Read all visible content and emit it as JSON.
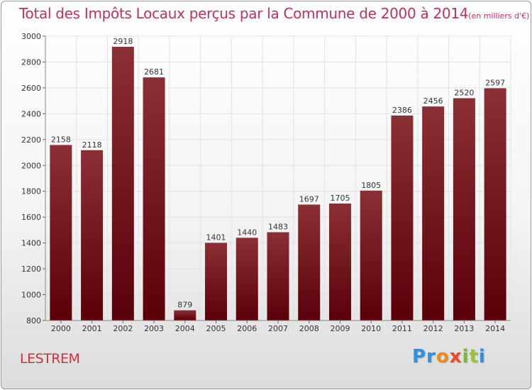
{
  "title": {
    "main": "Total des Impôts Locaux perçus par la Commune de 2000 à 2014",
    "unit": "(en milliers d'€)"
  },
  "commune": "LESTREM",
  "logo": {
    "text": "Proxiti",
    "letters": [
      "Pr",
      "o",
      "x",
      "i",
      "t",
      "i"
    ],
    "colors": [
      "#2f8fe0",
      "#f08a1c",
      "#e94b2a",
      "#7ab83a",
      "#9ac23a",
      "#2f8fe0"
    ]
  },
  "colors": {
    "title": "#c0305a",
    "commune": "#cf3040",
    "bar_top": "#8c2f35",
    "bar_bottom": "#5a0008",
    "grid": "#e2e2e2"
  },
  "chart_data": {
    "type": "bar",
    "title": "Total des Impôts Locaux perçus par la Commune de 2000 à 2014",
    "xlabel": "",
    "ylabel": "",
    "categories": [
      "2000",
      "2001",
      "2002",
      "2003",
      "2004",
      "2005",
      "2006",
      "2007",
      "2008",
      "2009",
      "2010",
      "2011",
      "2012",
      "2013",
      "2014"
    ],
    "values": [
      2158,
      2118,
      2918,
      2681,
      879,
      1401,
      1440,
      1483,
      1697,
      1705,
      1805,
      2386,
      2456,
      2520,
      2597
    ],
    "ylim": [
      800,
      3000
    ],
    "yticks": [
      800,
      1000,
      1200,
      1400,
      1600,
      1800,
      2000,
      2200,
      2400,
      2600,
      2800,
      3000
    ],
    "grid": true,
    "legend": "none"
  }
}
